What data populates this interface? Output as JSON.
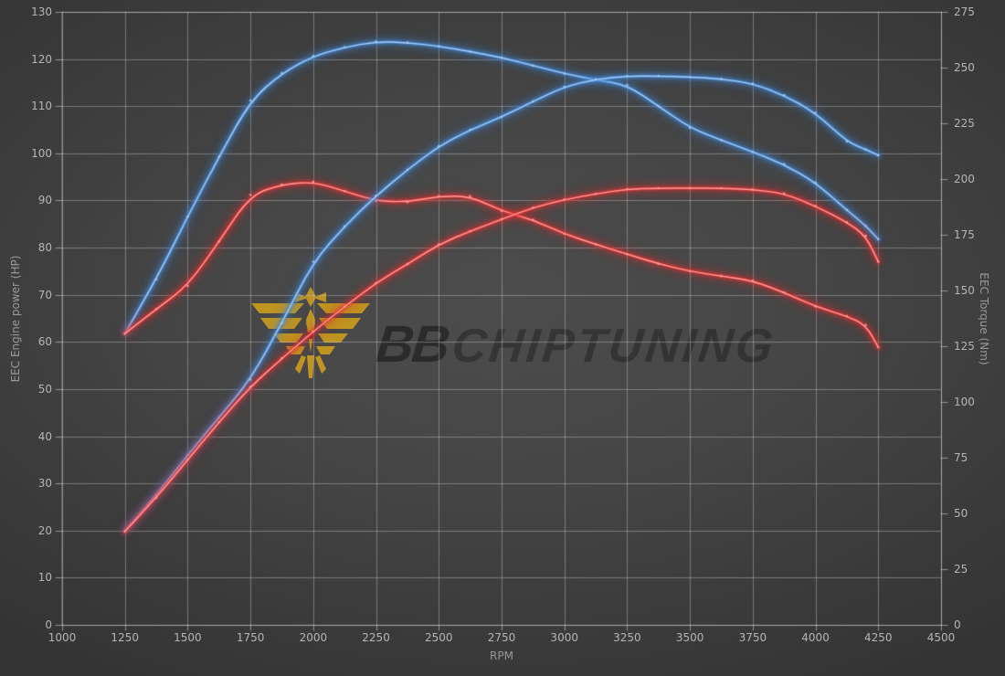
{
  "watermark": {
    "brand_bold": "BB",
    "brand_rest": "CHIPTUNING",
    "logo_color": "#c6991f",
    "logo_accent_color": "#8a2222",
    "text_color": "#161616"
  },
  "colors": {
    "background": "#434343",
    "grid": "rgba(200,200,200,0.42)",
    "spine": "rgba(212,212,212,0.55)",
    "tick_text": "#b5b5b5",
    "axis_text": "#999999",
    "blue": "#3f86d6",
    "blue_core": "#a7cbf2",
    "red": "#e02e2e",
    "red_core": "#ffa0a0"
  },
  "chart_data": {
    "type": "line",
    "title": "",
    "xlabel": "RPM",
    "ylabel_left": "EEC Engine power (HP)",
    "ylabel_right": "EEC Torque (Nm)",
    "x_range": [
      1000,
      4500
    ],
    "x_ticks": [
      1000,
      1250,
      1500,
      1750,
      2000,
      2250,
      2500,
      2750,
      3000,
      3250,
      3500,
      3750,
      4000,
      4250,
      4500
    ],
    "y_left_range": [
      0,
      130
    ],
    "y_left_ticks": [
      0,
      10,
      20,
      30,
      40,
      50,
      60,
      70,
      80,
      90,
      100,
      110,
      120,
      130
    ],
    "y_right_range": [
      0,
      275
    ],
    "y_right_ticks": [
      0,
      25,
      50,
      75,
      100,
      125,
      150,
      175,
      200,
      225,
      250,
      275
    ],
    "grid": true,
    "legend": "none",
    "x": [
      1250,
      1375,
      1500,
      1625,
      1750,
      1875,
      2000,
      2125,
      2250,
      2375,
      2500,
      2625,
      2750,
      2875,
      3000,
      3125,
      3250,
      3375,
      3500,
      3625,
      3750,
      3875,
      4000,
      4125,
      4200,
      4250
    ],
    "series": [
      {
        "name": "torque-blue",
        "axis": "right",
        "unit": "Nm",
        "color": "#3f86d6",
        "core": "#a7cbf2",
        "values": [
          130.7,
          155.0,
          183.2,
          210.0,
          235.2,
          247.5,
          255.1,
          259.1,
          261.7,
          261.2,
          259.6,
          257.2,
          254.5,
          250.9,
          247.3,
          244.5,
          242.2,
          232.7,
          223.0,
          217.4,
          212.2,
          206.6,
          198.4,
          186.1,
          179.0,
          173.0
        ]
      },
      {
        "name": "torque-red",
        "axis": "right",
        "unit": "Nm",
        "color": "#e02e2e",
        "core": "#ffa0a0",
        "values": [
          130.7,
          141.7,
          152.1,
          172.0,
          192.9,
          197.5,
          198.8,
          194.6,
          190.2,
          189.7,
          192.3,
          192.3,
          185.7,
          181.7,
          175.4,
          170.7,
          166.3,
          162.0,
          158.6,
          156.5,
          154.4,
          149.1,
          142.8,
          138.5,
          134.5,
          124.6
        ]
      },
      {
        "name": "power-blue",
        "axis": "left",
        "unit": "HP",
        "color": "#3f86d6",
        "core": "#a7cbf2",
        "values": [
          20.0,
          27.5,
          36.0,
          44.0,
          52.0,
          64.0,
          77.0,
          84.5,
          91.0,
          96.5,
          101.5,
          105.0,
          107.7,
          111.0,
          114.1,
          115.7,
          116.4,
          116.4,
          116.2,
          115.8,
          114.8,
          112.3,
          108.6,
          102.5,
          100.8,
          99.6
        ]
      },
      {
        "name": "power-red",
        "axis": "left",
        "unit": "HP",
        "color": "#e02e2e",
        "core": "#ffa0a0",
        "values": [
          19.8,
          27.0,
          35.0,
          43.0,
          50.5,
          56.5,
          62.2,
          67.5,
          72.5,
          76.5,
          80.7,
          83.5,
          86.0,
          88.5,
          90.2,
          91.4,
          92.4,
          92.6,
          92.6,
          92.6,
          92.3,
          91.5,
          88.8,
          85.4,
          82.5,
          77.0
        ]
      }
    ]
  }
}
